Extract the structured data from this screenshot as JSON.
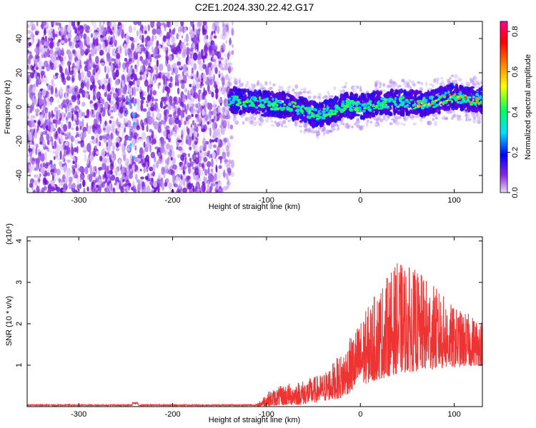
{
  "title": "C2E1.2024.330.22.42.G17",
  "chart_data": [
    {
      "type": "heatmap",
      "xlabel": "Height of straight line (km)",
      "ylabel": "Frequency (Hz)",
      "xlim": [
        -355,
        130
      ],
      "ylim": [
        -50,
        50
      ],
      "xticks": [
        -300,
        -200,
        -100,
        0,
        100
      ],
      "xtick_labels": [
        "-300",
        "-200",
        "-100",
        "0",
        "100"
      ],
      "yticks": [
        -40,
        -20,
        0,
        20,
        40
      ],
      "ytick_labels": [
        "-40",
        "-20",
        "0",
        "20",
        "40"
      ],
      "noise_region_x": [
        -355,
        -140
      ],
      "signal_region_x": [
        -140,
        130
      ],
      "signal_center_freq": [
        [
          -140,
          4
        ],
        [
          -120,
          3
        ],
        [
          -100,
          2
        ],
        [
          -80,
          1
        ],
        [
          -60,
          -2
        ],
        [
          -45,
          -5
        ],
        [
          -30,
          -2
        ],
        [
          -15,
          1
        ],
        [
          0,
          0
        ],
        [
          20,
          2
        ],
        [
          40,
          3
        ],
        [
          60,
          2
        ],
        [
          80,
          3
        ],
        [
          95,
          6
        ],
        [
          110,
          5
        ],
        [
          130,
          4
        ]
      ],
      "colorbar": {
        "label": "Normalized spectral amplitude",
        "range": [
          0.0,
          0.85
        ],
        "ticks": [
          0.0,
          0.2,
          0.4,
          0.6,
          0.8
        ],
        "tick_labels": [
          "0.0",
          "0.2",
          "0.4",
          "0.6",
          "0.8"
        ],
        "colors": [
          "#e8d8f8",
          "#8a2be2",
          "#0000ff",
          "#00e0ff",
          "#00ff60",
          "#ffff00",
          "#ff8000",
          "#ff0000",
          "#ff0090"
        ]
      }
    },
    {
      "type": "line",
      "xlabel": "Height of straight line (km)",
      "ylabel": "SNR (10 * v/v)",
      "scale_label": "(x10⁴)",
      "xlim": [
        -355,
        130
      ],
      "ylim": [
        0,
        4.1
      ],
      "xticks": [
        -300,
        -200,
        -100,
        0,
        100
      ],
      "xtick_labels": [
        "-300",
        "-200",
        "-100",
        "0",
        "100"
      ],
      "yticks": [
        1,
        2,
        3,
        4
      ],
      "ytick_labels": [
        "1",
        "2",
        "3",
        "4"
      ],
      "color": "#ee3333",
      "envelope": [
        [
          -355,
          0.03
        ],
        [
          -110,
          0.05
        ],
        [
          -100,
          0.35
        ],
        [
          -80,
          0.55
        ],
        [
          -60,
          0.65
        ],
        [
          -40,
          0.8
        ],
        [
          -20,
          1.3
        ],
        [
          0,
          2.1
        ],
        [
          20,
          2.9
        ],
        [
          40,
          3.5
        ],
        [
          60,
          3.3
        ],
        [
          80,
          2.9
        ],
        [
          100,
          2.4
        ],
        [
          120,
          2.2
        ],
        [
          130,
          2.1
        ]
      ],
      "floor": [
        [
          -355,
          0.0
        ],
        [
          -110,
          0.0
        ],
        [
          -60,
          0.05
        ],
        [
          -20,
          0.2
        ],
        [
          0,
          0.5
        ],
        [
          40,
          0.8
        ],
        [
          80,
          0.9
        ],
        [
          130,
          1.0
        ]
      ]
    }
  ]
}
